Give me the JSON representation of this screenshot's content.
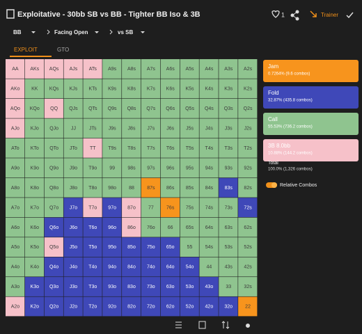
{
  "header": {
    "title": "Exploitative - 30bb SB vs BB - Tighter BB Iso & 3B",
    "likes": "1",
    "trainer": "Trainer"
  },
  "nav": [
    "BB",
    "Facing Open",
    "vs SB"
  ],
  "tabs": [
    "EXPLOIT",
    "GTO"
  ],
  "grid": {
    "rows": [
      [
        "AA",
        "AKs",
        "AQs",
        "AJs",
        "ATs",
        "A9s",
        "A8s",
        "A7s",
        "A6s",
        "A5s",
        "A4s",
        "A3s",
        "A2s"
      ],
      [
        "AKo",
        "KK",
        "KQs",
        "KJs",
        "KTs",
        "K9s",
        "K8s",
        "K7s",
        "K6s",
        "K5s",
        "K4s",
        "K3s",
        "K2s"
      ],
      [
        "AQo",
        "KQo",
        "QQ",
        "QJs",
        "QTs",
        "Q9s",
        "Q8s",
        "Q7s",
        "Q6s",
        "Q5s",
        "Q4s",
        "Q3s",
        "Q2s"
      ],
      [
        "AJo",
        "KJo",
        "QJo",
        "JJ",
        "JTs",
        "J9s",
        "J8s",
        "J7s",
        "J6s",
        "J5s",
        "J4s",
        "J3s",
        "J2s"
      ],
      [
        "ATo",
        "KTo",
        "QTo",
        "JTo",
        "TT",
        "T9s",
        "T8s",
        "T7s",
        "T6s",
        "T5s",
        "T4s",
        "T3s",
        "T2s"
      ],
      [
        "A9o",
        "K9o",
        "Q9o",
        "J9o",
        "T9o",
        "99",
        "98s",
        "97s",
        "96s",
        "95s",
        "94s",
        "93s",
        "92s"
      ],
      [
        "A8o",
        "K8o",
        "Q8o",
        "J8o",
        "T8o",
        "98o",
        "88",
        "87s",
        "86s",
        "85s",
        "84s",
        "83s",
        "82s"
      ],
      [
        "A7o",
        "K7o",
        "Q7o",
        "J7o",
        "T7o",
        "97o",
        "87o",
        "77",
        "76s",
        "75s",
        "74s",
        "73s",
        "72s"
      ],
      [
        "A6o",
        "K6o",
        "Q6o",
        "J6o",
        "T6o",
        "96o",
        "86o",
        "76o",
        "66",
        "65s",
        "64s",
        "63s",
        "62s"
      ],
      [
        "A5o",
        "K5o",
        "Q5o",
        "J5o",
        "T5o",
        "95o",
        "85o",
        "75o",
        "65o",
        "55",
        "54s",
        "53s",
        "52s"
      ],
      [
        "A4o",
        "K4o",
        "Q4o",
        "J4o",
        "T4o",
        "94o",
        "84o",
        "74o",
        "64o",
        "54o",
        "44",
        "43s",
        "42s"
      ],
      [
        "A3o",
        "K3o",
        "Q3o",
        "J3o",
        "T3o",
        "93o",
        "83o",
        "73o",
        "63o",
        "53o",
        "43o",
        "33",
        "32s"
      ],
      [
        "A2o",
        "K2o",
        "Q2o",
        "J2o",
        "T2o",
        "92o",
        "82o",
        "72o",
        "62o",
        "52o",
        "42o",
        "32o",
        "22"
      ]
    ]
  },
  "legend": [
    {
      "name": "Jam",
      "detail": "0.7264% (9.6 combos)"
    },
    {
      "name": "Fold",
      "detail": "32.87% (435.8 combos)"
    },
    {
      "name": "Call",
      "detail": "55.53% (736.2 combos)"
    },
    {
      "name": "3B 8.0bb",
      "detail": "10.88% (144.2 combos)"
    }
  ],
  "total": {
    "label": "Total",
    "detail": "100.0% (1,326 combos)"
  },
  "toggle": "Relative Combos"
}
